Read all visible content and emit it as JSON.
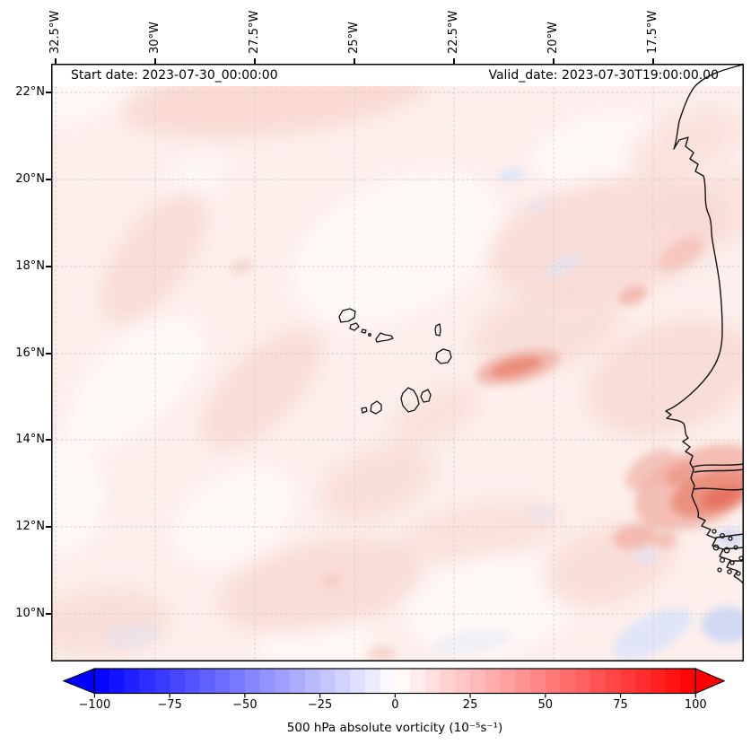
{
  "figure": {
    "annotations": {
      "start_date": "Start date: 2023-07-30_00:00:00",
      "valid_date": "Valid_date: 2023-07-30T19:00:00.00"
    }
  },
  "axes": {
    "x_tick_labels": [
      "32.5°W",
      "30°W",
      "27.5°W",
      "25°W",
      "22.5°W",
      "20°W",
      "17.5°W"
    ],
    "y_tick_labels": [
      "22°N",
      "20°N",
      "18°N",
      "16°N",
      "14°N",
      "12°N",
      "10°N"
    ]
  },
  "colorbar": {
    "label": "500 hPa absolute vorticity (10⁻⁵s⁻¹)",
    "tick_labels": [
      "−100",
      "−75",
      "−50",
      "−25",
      "0",
      "25",
      "50",
      "75",
      "100"
    ],
    "tick_values": [
      -100,
      -75,
      -50,
      -25,
      0,
      25,
      50,
      75,
      100
    ],
    "min": -100,
    "max": 100,
    "step": 5,
    "colormap": "bwr",
    "extend": "both",
    "under_color": "#0000ff",
    "over_color": "#ff0000"
  },
  "chart_data": {
    "type": "heatmap",
    "title": "",
    "variable": "500 hPa absolute vorticity",
    "units": "10⁻⁵ s⁻¹",
    "annotations": [
      "Start date: 2023-07-30_00:00:00",
      "Valid_date: 2023-07-30T19:00:00.00"
    ],
    "colormap": "bwr (blue-white-red), discrete filled-contour levels of 5 units, extended arrows both ends",
    "levels_range": [
      -100,
      100
    ],
    "level_step": 5,
    "colorbar_ticks": [
      -100,
      -75,
      -50,
      -25,
      0,
      25,
      50,
      75,
      100
    ],
    "x_axis": {
      "ticks": [
        "32.5°W",
        "30°W",
        "27.5°W",
        "25°W",
        "22.5°W",
        "20°W",
        "17.5°W"
      ],
      "tick_side": "top",
      "tick_rotation_deg": 90,
      "approx_range_deg_west": [
        32.6,
        15.2
      ]
    },
    "y_axis": {
      "ticks": [
        "22°N",
        "20°N",
        "18°N",
        "16°N",
        "14°N",
        "12°N",
        "10°N"
      ],
      "tick_side": "left",
      "approx_range_deg_north": [
        8.9,
        22.7
      ]
    },
    "grid": "dashed lat/lon graticule every 2.5° lon / 2° lat",
    "field_summary": [
      {
        "region": "most of open Atlantic domain",
        "value_approx": "0 to +10 (very pale pink mottling)"
      },
      {
        "region": "elongated maximum near 16°N, 21.5–23°W",
        "value_approx": "+20 to +30"
      },
      {
        "region": "coastal Senegal/Gambia 13–14°N near 16–17°W",
        "value_approx": "+30 to +45 (strongest red)"
      },
      {
        "region": "near 18°N, 19.5°W off Mauritania",
        "value_approx": "+15 to +25"
      },
      {
        "region": "patches near 12°N, 16.5°W and SE corner",
        "value_approx": "-5 to -15 (light blue)"
      },
      {
        "region": "scattered tiny patches upper right",
        "value_approx": "-5"
      }
    ],
    "geography": [
      "Cape Verde islands outlined near 15–17°N, 23–25.5°W",
      "West African coastline (Western Sahara, Mauritania, Senegal, Gambia, Guinea-Bissau with Bijagós islands) along right side"
    ]
  }
}
